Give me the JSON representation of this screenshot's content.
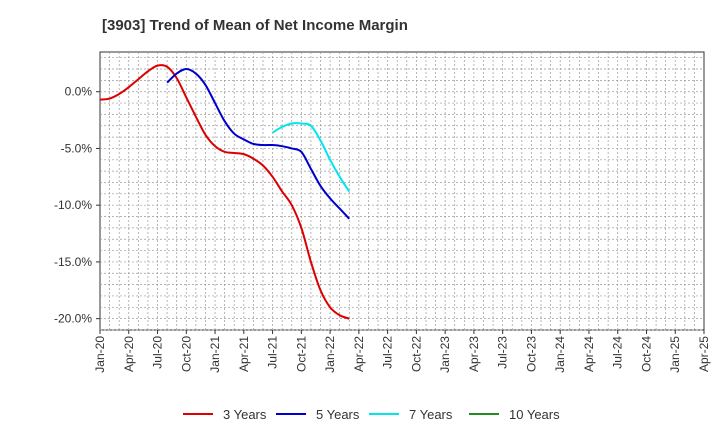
{
  "chart_data": {
    "type": "line",
    "title": "[3903]  Trend of Mean of Net Income Margin",
    "xlabel": "",
    "ylabel": "",
    "ylim": [
      -21,
      3.5
    ],
    "yticks": [
      0,
      -5,
      -10,
      -15,
      -20
    ],
    "ytick_labels": [
      "0.0%",
      "-5.0%",
      "-10.0%",
      "-15.0%",
      "-20.0%"
    ],
    "x_tick_labels": [
      "Jan-20",
      "Apr-20",
      "Jul-20",
      "Oct-20",
      "Jan-21",
      "Apr-21",
      "Jul-21",
      "Oct-21",
      "Jan-22",
      "Apr-22",
      "Jul-22",
      "Oct-22",
      "Jan-23",
      "Apr-23",
      "Jul-23",
      "Oct-23",
      "Jan-24",
      "Apr-24",
      "Jul-24",
      "Oct-24",
      "Jan-25",
      "Apr-25"
    ],
    "grid": true,
    "legend_position": "bottom",
    "series": [
      {
        "name": "3 Years",
        "color": "#dd0000",
        "values": [
          -0.7,
          -0.6,
          -0.2,
          0.4,
          1.1,
          1.8,
          2.3,
          2.2,
          1.2,
          -0.5,
          -2.2,
          -3.8,
          -4.8,
          -5.3,
          -5.4,
          -5.5,
          -5.9,
          -6.5,
          -7.5,
          -8.8,
          -10.0,
          -12.0,
          -15.0,
          -17.5,
          -19.0,
          -19.7,
          -20.0
        ],
        "x_offset": 0
      },
      {
        "name": "5 Years",
        "color": "#0000cc",
        "values": [
          0.8,
          1.6,
          2.0,
          1.6,
          0.6,
          -1.0,
          -2.6,
          -3.7,
          -4.2,
          -4.6,
          -4.7,
          -4.7,
          -4.8,
          -5.0,
          -5.3,
          -6.8,
          -8.3,
          -9.4,
          -10.3,
          -11.2
        ],
        "x_offset": 7
      },
      {
        "name": "7 Years",
        "color": "#00e5ee",
        "values": [
          -3.6,
          -3.1,
          -2.8,
          -2.8,
          -3.0,
          -4.3,
          -6.0,
          -7.5,
          -8.8
        ],
        "x_offset": 18
      },
      {
        "name": "10 Years",
        "color": "#228b22",
        "values": [],
        "x_offset": 0
      }
    ]
  }
}
